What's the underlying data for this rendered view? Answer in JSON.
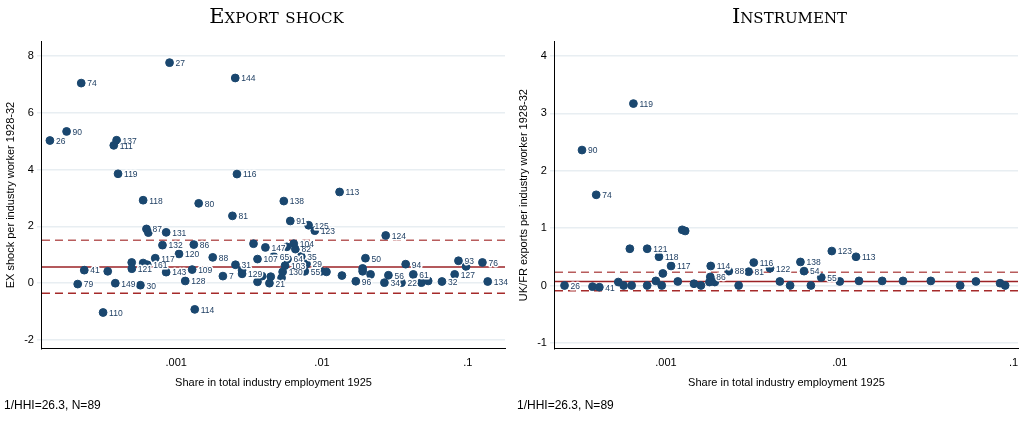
{
  "chart_data": [
    {
      "type": "scatter",
      "title": "Export shock",
      "xlabel": "Share in total industry employment 1925",
      "ylabel": "EX shock per industry worker 1928-32",
      "log": "x",
      "grid": "y",
      "marker": "circle",
      "xlim": [
        0.00012,
        0.18
      ],
      "xticks": [
        {
          "value": 0.001,
          "label": ".001"
        },
        {
          "value": 0.01,
          "label": ".01"
        },
        {
          "value": 0.1,
          "label": ".1"
        }
      ],
      "ylim": [
        -2.3,
        8.5
      ],
      "yticks": [
        -2,
        0,
        2,
        4,
        6,
        8
      ],
      "ref_lines": [
        {
          "axis": "y",
          "value": 0.57,
          "color": "#9b2226",
          "line_style": "solid"
        },
        {
          "axis": "y",
          "value": 1.51,
          "color": "#b85c5c",
          "line_style": "dashed"
        },
        {
          "axis": "y",
          "value": -0.35,
          "color": "#a52a2a",
          "line_style": "dashed"
        }
      ],
      "annotations": [
        "1/HHI=26.3, N=89",
        {
          "text": "27",
          "x": 0.0009,
          "y": 7.76
        },
        {
          "text": "74",
          "x": 0.000223,
          "y": 7.04
        },
        {
          "text": "144",
          "x": 0.00254,
          "y": 7.22
        },
        {
          "text": "90",
          "x": 0.000177,
          "y": 5.34
        },
        {
          "text": "26",
          "x": 0.000136,
          "y": 5.02
        },
        {
          "text": "137",
          "x": 0.00039,
          "y": 5.03
        },
        {
          "text": "111",
          "x": 0.000373,
          "y": 4.85
        },
        {
          "text": "119",
          "x": 0.000399,
          "y": 3.85
        },
        {
          "text": "116",
          "x": 0.00261,
          "y": 3.84
        },
        {
          "text": "118",
          "x": 0.000593,
          "y": 2.92
        },
        {
          "text": "80",
          "x": 0.001426,
          "y": 2.81
        },
        {
          "text": "81",
          "x": 0.00243,
          "y": 2.37
        },
        {
          "text": "87",
          "x": 0.000625,
          "y": 1.91
        },
        {
          "text": "131",
          "x": 0.000853,
          "y": 1.79
        },
        {
          "text": "132",
          "x": 0.000805,
          "y": 1.34
        },
        {
          "text": "86",
          "x": 0.00132,
          "y": 1.36
        },
        {
          "text": "120",
          "x": 0.001045,
          "y": 1.03
        },
        {
          "text": "88",
          "x": 0.00178,
          "y": 0.91
        },
        {
          "text": "117",
          "x": 0.000718,
          "y": 0.88
        },
        {
          "text": "31",
          "x": 0.00255,
          "y": 0.65
        },
        {
          "text": "161",
          "x": 0.000633,
          "y": 0.65
        },
        {
          "text": "41",
          "x": 0.000234,
          "y": 0.46
        },
        {
          "text": "121",
          "x": 0.000496,
          "y": 0.51
        },
        {
          "text": "143",
          "x": 0.000853,
          "y": 0.39
        },
        {
          "text": "109",
          "x": 0.001286,
          "y": 0.48
        },
        {
          "text": "7",
          "x": 0.00209,
          "y": 0.25
        },
        {
          "text": "79",
          "x": 0.000211,
          "y": -0.03
        },
        {
          "text": "149",
          "x": 0.000382,
          "y": 0.0
        },
        {
          "text": "30",
          "x": 0.000568,
          "y": -0.07
        },
        {
          "text": "128",
          "x": 0.001153,
          "y": 0.08
        },
        {
          "text": "110",
          "x": 0.000315,
          "y": -1.03
        },
        {
          "text": "114",
          "x": 0.00134,
          "y": -0.92
        },
        {
          "text": "129",
          "x": 0.00283,
          "y": 0.33
        },
        {
          "text": "147",
          "x": 0.00409,
          "y": 1.26
        },
        {
          "text": "107",
          "x": 0.00361,
          "y": 0.85
        },
        {
          "text": "65",
          "x": 0.00467,
          "y": 0.94
        },
        {
          "text": "104",
          "x": 0.0064,
          "y": 1.39
        },
        {
          "text": "82",
          "x": 0.00657,
          "y": 1.2
        },
        {
          "text": "64",
          "x": 0.0058,
          "y": 0.85
        },
        {
          "text": "35",
          "x": 0.00721,
          "y": 0.94
        },
        {
          "text": "103",
          "x": 0.00558,
          "y": 0.62
        },
        {
          "text": "29",
          "x": 0.00783,
          "y": 0.68
        },
        {
          "text": "130",
          "x": 0.00537,
          "y": 0.4
        },
        {
          "text": "55",
          "x": 0.00762,
          "y": 0.42
        },
        {
          "text": "21",
          "x": 0.00436,
          "y": 0.0
        },
        {
          "text": "96",
          "x": 0.01706,
          "y": 0.07
        },
        {
          "text": "50",
          "x": 0.01986,
          "y": 0.88
        },
        {
          "text": "124",
          "x": 0.02735,
          "y": 1.68
        },
        {
          "text": "56",
          "x": 0.02855,
          "y": 0.28
        },
        {
          "text": "34",
          "x": 0.0268,
          "y": 0.02
        },
        {
          "text": "94",
          "x": 0.0375,
          "y": 0.67
        },
        {
          "text": "22",
          "x": 0.0351,
          "y": 0.02
        },
        {
          "text": "61",
          "x": 0.0423,
          "y": 0.31
        },
        {
          "text": "32",
          "x": 0.0665,
          "y": 0.06
        },
        {
          "text": "127",
          "x": 0.0813,
          "y": 0.31
        },
        {
          "text": "93",
          "x": 0.0863,
          "y": 0.79
        },
        {
          "text": "76",
          "x": 0.126,
          "y": 0.73
        },
        {
          "text": "134",
          "x": 0.137,
          "y": 0.06
        },
        {
          "text": "113",
          "x": 0.0132,
          "y": 3.21
        },
        {
          "text": "138",
          "x": 0.00547,
          "y": 2.89
        },
        {
          "text": "91",
          "x": 0.00606,
          "y": 2.19
        },
        {
          "text": "125",
          "x": 0.00809,
          "y": 2.04
        },
        {
          "text": "123",
          "x": 0.00892,
          "y": 1.85
        }
      ],
      "series": [
        {
          "color": "#1a476f",
          "x": [
            0.0009,
            0.000223,
            0.00254,
            0.000177,
            0.000136,
            0.00039,
            0.000373,
            0.000399,
            0.00261,
            0.000593,
            0.001426,
            0.00243,
            0.000625,
            0.000644,
            0.000853,
            0.000805,
            0.00132,
            0.001045,
            0.00178,
            0.000718,
            0.00255,
            0.000495,
            0.000633,
            0.000593,
            0.000234,
            0.000339,
            0.000496,
            0.000853,
            0.001286,
            0.00209,
            0.000211,
            0.000382,
            0.000568,
            0.001153,
            0.000315,
            0.00134,
            0.00283,
            0.00283,
            0.00339,
            0.00409,
            0.00361,
            0.00467,
            0.00574,
            0.0064,
            0.00657,
            0.0058,
            0.00721,
            0.00558,
            0.00783,
            0.00537,
            0.00762,
            0.00989,
            0.01073,
            0.00361,
            0.00388,
            0.00445,
            0.00528,
            0.00436,
            0.0137,
            0.01706,
            0.01986,
            0.019,
            0.019,
            0.02153,
            0.02735,
            0.02855,
            0.0268,
            0.0375,
            0.0351,
            0.0423,
            0.048,
            0.0535,
            0.0665,
            0.0813,
            0.0863,
            0.0973,
            0.126,
            0.137,
            0.0132,
            0.00547,
            0.00606,
            0.00809,
            0.00892
          ],
          "values": [
            7.76,
            7.04,
            7.22,
            5.34,
            5.02,
            5.03,
            4.85,
            3.85,
            3.84,
            2.92,
            2.81,
            2.37,
            1.91,
            1.78,
            1.79,
            1.34,
            1.36,
            1.03,
            0.91,
            0.88,
            0.65,
            0.73,
            0.65,
            0.71,
            0.46,
            0.42,
            0.51,
            0.39,
            0.48,
            0.25,
            -0.03,
            0.0,
            -0.07,
            0.08,
            -1.03,
            -0.92,
            0.33,
            0.46,
            1.39,
            1.26,
            0.85,
            0.94,
            1.28,
            1.39,
            1.2,
            0.85,
            0.94,
            0.62,
            0.68,
            0.4,
            0.42,
            0.42,
            0.4,
            0.05,
            0.25,
            0.23,
            0.19,
            0.0,
            0.27,
            0.07,
            0.88,
            0.52,
            0.42,
            0.31,
            1.68,
            0.28,
            0.02,
            0.67,
            0.02,
            0.31,
            0.02,
            0.08,
            0.06,
            0.31,
            0.79,
            0.59,
            0.73,
            0.06,
            3.21,
            2.89,
            2.19,
            2.04,
            1.85
          ]
        }
      ]
    },
    {
      "type": "scatter",
      "title": "Instrument",
      "xlabel": "Share in total industry employment 1925",
      "ylabel": "UK/FR exports per industry worker 1928-32",
      "log": "x",
      "grid": "y",
      "marker": "circle",
      "xlim": [
        0.00023,
        0.106
      ],
      "xticks": [
        {
          "value": 0.001,
          "label": ".001"
        },
        {
          "value": 0.01,
          "label": ".01"
        },
        {
          "value": 0.1,
          "label": ".1"
        }
      ],
      "ylim": [
        -1.1,
        4.25
      ],
      "yticks": [
        -1,
        0,
        1,
        2,
        3,
        4
      ],
      "ref_lines": [
        {
          "axis": "y",
          "value": 0.07,
          "color": "#9b2226",
          "line_style": "solid"
        },
        {
          "axis": "y",
          "value": 0.23,
          "color": "#b85c5c",
          "line_style": "dashed"
        },
        {
          "axis": "y",
          "value": -0.09,
          "color": "#a52a2a",
          "line_style": "dashed"
        }
      ],
      "annotations": [
        "1/HHI=26.3, N=89",
        {
          "text": "119",
          "x": 0.00065,
          "y": 3.17
        },
        {
          "text": "90",
          "x": 0.000329,
          "y": 2.36
        },
        {
          "text": "74",
          "x": 0.000397,
          "y": 1.58
        },
        {
          "text": "121",
          "x": 0.00078,
          "y": 0.64
        },
        {
          "text": "118",
          "x": 0.000912,
          "y": 0.5
        },
        {
          "text": "117",
          "x": 0.00107,
          "y": 0.34
        },
        {
          "text": "114",
          "x": 0.00181,
          "y": 0.34
        },
        {
          "text": "88",
          "x": 0.0023,
          "y": 0.25
        },
        {
          "text": "86",
          "x": 0.0018,
          "y": 0.15
        },
        {
          "text": "81",
          "x": 0.00299,
          "y": 0.24
        },
        {
          "text": "116",
          "x": 0.0032,
          "y": 0.4
        },
        {
          "text": "26",
          "x": 0.000261,
          "y": 0.0
        },
        {
          "text": "41",
          "x": 0.000414,
          "y": -0.03
        },
        {
          "text": "122",
          "x": 0.00397,
          "y": 0.3
        },
        {
          "text": "138",
          "x": 0.00594,
          "y": 0.41
        },
        {
          "text": "54",
          "x": 0.00623,
          "y": 0.25
        },
        {
          "text": "123",
          "x": 0.009,
          "y": 0.6
        },
        {
          "text": "113",
          "x": 0.0124,
          "y": 0.5
        },
        {
          "text": "55",
          "x": 0.00783,
          "y": 0.14
        }
      ],
      "series": [
        {
          "color": "#1a476f",
          "x": [
            0.00065,
            0.000329,
            0.000397,
            0.00124,
            0.00129,
            0.00062,
            0.00078,
            0.000912,
            0.00107,
            0.00096,
            0.00181,
            0.0023,
            0.0018,
            0.00299,
            0.0032,
            0.000261,
            0.000378,
            0.000414,
            0.000532,
            0.000571,
            0.000635,
            0.00078,
            0.000875,
            0.000946,
            0.00117,
            0.00145,
            0.00159,
            0.00178,
            0.00191,
            0.00262,
            0.00397,
            0.00594,
            0.00623,
            0.009,
            0.0124,
            0.00783,
            0.01,
            0.0129,
            0.01754,
            0.0231,
            0.0334,
            0.0493,
            0.0607,
            0.0836,
            0.0894,
            0.00452,
            0.00682,
            0.00518
          ],
          "values": [
            3.17,
            2.36,
            1.58,
            0.97,
            0.95,
            0.64,
            0.64,
            0.5,
            0.34,
            0.21,
            0.34,
            0.25,
            0.15,
            0.24,
            0.4,
            0.0,
            -0.02,
            -0.03,
            0.06,
            0.0,
            0.0,
            0.0,
            0.08,
            0.0,
            0.07,
            0.03,
            0.0,
            0.06,
            0.06,
            0.0,
            0.3,
            0.41,
            0.25,
            0.6,
            0.5,
            0.14,
            0.07,
            0.08,
            0.08,
            0.08,
            0.08,
            0.0,
            0.07,
            0.04,
            0.0,
            0.07,
            0.0,
            0.0
          ]
        }
      ]
    }
  ]
}
